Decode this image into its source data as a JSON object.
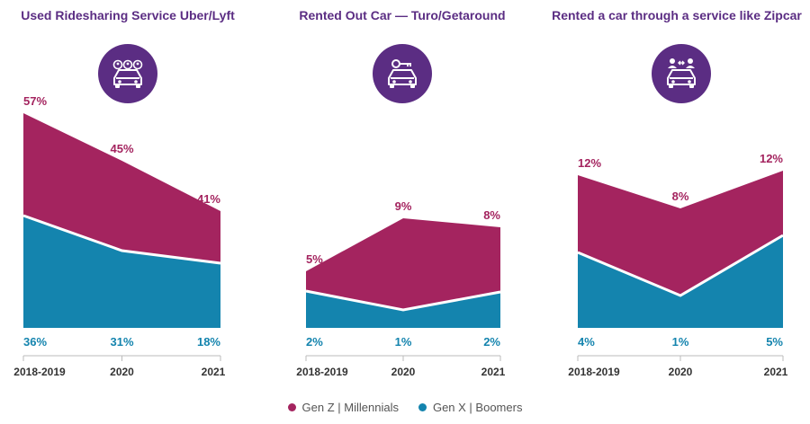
{
  "colors": {
    "top": "#A4245F",
    "bottom": "#1484AE",
    "icon_bg": "#5B2D83",
    "title": "#5B2D83",
    "axis_text": "#333333",
    "axis_line": "#BBBBBB"
  },
  "legend": [
    {
      "label": "Gen Z  |  Millennials",
      "color_key": "top"
    },
    {
      "label": "Gen X  |  Boomers",
      "color_key": "bottom"
    }
  ],
  "chart_data": [
    {
      "type": "area",
      "title": "Used Ridesharing Service Uber/Lyft",
      "icon": "people-car-icon",
      "categories": [
        "2018-2019",
        "2020",
        "2021"
      ],
      "series": [
        {
          "name": "Gen Z  |  Millennials",
          "values": [
            57,
            45,
            41
          ],
          "labels": [
            "57%",
            "45%",
            "41%"
          ]
        },
        {
          "name": "Gen X  |  Boomers",
          "values": [
            36,
            31,
            18
          ],
          "labels": [
            "36%",
            "31%",
            "18%"
          ]
        }
      ]
    },
    {
      "type": "area",
      "title": "Rented Out Car — Turo/Getaround",
      "icon": "key-car-icon",
      "categories": [
        "2018-2019",
        "2020",
        "2021"
      ],
      "series": [
        {
          "name": "Gen Z  |  Millennials",
          "values": [
            5,
            9,
            8
          ],
          "labels": [
            "5%",
            "9%",
            "8%"
          ]
        },
        {
          "name": "Gen X  |  Boomers",
          "values": [
            2,
            1,
            2
          ],
          "labels": [
            "2%",
            "1%",
            "2%"
          ]
        }
      ]
    },
    {
      "type": "area",
      "title": "Rented a car through a service like Zipcar",
      "icon": "share-car-icon",
      "categories": [
        "2018-2019",
        "2020",
        "2021"
      ],
      "series": [
        {
          "name": "Gen Z  |  Millennials",
          "values": [
            12,
            8,
            12
          ],
          "labels": [
            "12%",
            "8%",
            "12%"
          ]
        },
        {
          "name": "Gen X  |  Boomers",
          "values": [
            4,
            1,
            5
          ],
          "labels": [
            "4%",
            "1%",
            "5%"
          ]
        }
      ]
    }
  ]
}
